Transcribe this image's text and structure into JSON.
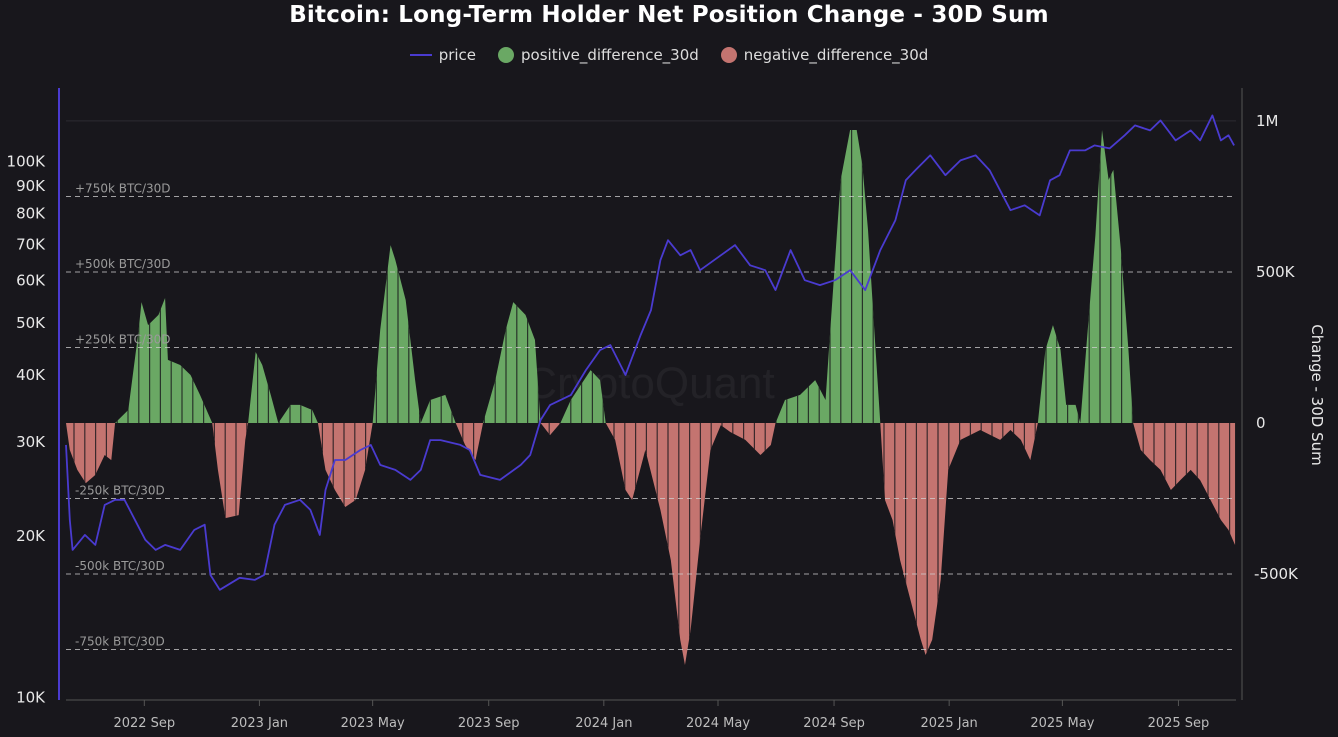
{
  "chart_data": {
    "type": "bar+line",
    "title": "Bitcoin: Long-Term Holder Net Position Change - 30D Sum",
    "legend": {
      "placement": "top-center",
      "entries": [
        "price",
        "positive_difference_30d",
        "negative_difference_30d"
      ]
    },
    "colors": {
      "price": "#4a3bd0",
      "positive": "#6aa864",
      "negative": "#c47470",
      "background": "#18171c"
    },
    "watermark": "CryptoQuant",
    "x_axis": {
      "type": "date",
      "range": [
        "2022-06-10",
        "2025-11-01"
      ],
      "ticks": [
        {
          "date": "2022-09-01",
          "label": "2022 Sep"
        },
        {
          "date": "2023-01-01",
          "label": "2023 Jan"
        },
        {
          "date": "2023-05-01",
          "label": "2023 May"
        },
        {
          "date": "2023-09-01",
          "label": "2023 Sep"
        },
        {
          "date": "2024-01-01",
          "label": "2024 Jan"
        },
        {
          "date": "2024-05-01",
          "label": "2024 May"
        },
        {
          "date": "2024-09-01",
          "label": "2024 Sep"
        },
        {
          "date": "2025-01-01",
          "label": "2025 Jan"
        },
        {
          "date": "2025-05-01",
          "label": "2025 May"
        },
        {
          "date": "2025-09-01",
          "label": "2025 Sep"
        }
      ]
    },
    "y_left": {
      "scale": "log",
      "range": [
        9900,
        137000
      ],
      "ticks": [
        {
          "value": 10000,
          "label": "10K"
        },
        {
          "value": 20000,
          "label": "20K"
        },
        {
          "value": 30000,
          "label": "30K"
        },
        {
          "value": 40000,
          "label": "40K"
        },
        {
          "value": 50000,
          "label": "50K"
        },
        {
          "value": 60000,
          "label": "60K"
        },
        {
          "value": 70000,
          "label": "70K"
        },
        {
          "value": 80000,
          "label": "80K"
        },
        {
          "value": 90000,
          "label": "90K"
        },
        {
          "value": 100000,
          "label": "100K"
        }
      ]
    },
    "y_right": {
      "scale": "linear",
      "label": "Change - 30D Sum",
      "range": [
        -917000,
        1109000
      ],
      "ticks": [
        {
          "value": 1000000,
          "label": "1M"
        },
        {
          "value": 500000,
          "label": "500K"
        },
        {
          "value": 0,
          "label": "0"
        },
        {
          "value": -500000,
          "label": "-500K"
        }
      ]
    },
    "reference_lines": [
      {
        "value": 750000,
        "label": "+750k BTC/30D"
      },
      {
        "value": 500000,
        "label": "+500k BTC/30D"
      },
      {
        "value": 250000,
        "label": "+250k BTC/30D"
      },
      {
        "value": -250000,
        "label": "-250k BTC/30D"
      },
      {
        "value": -500000,
        "label": "-500k BTC/30D"
      },
      {
        "value": -750000,
        "label": "-750k BTC/30D"
      }
    ],
    "series": [
      {
        "name": "price",
        "axis": "left",
        "type": "line",
        "points": [
          [
            "2022-06-10",
            29600
          ],
          [
            "2022-06-14",
            21460
          ],
          [
            "2022-06-17",
            18860
          ],
          [
            "2022-06-30",
            20110
          ],
          [
            "2022-07-11",
            19270
          ],
          [
            "2022-07-21",
            22880
          ],
          [
            "2022-08-01",
            23380
          ],
          [
            "2022-08-11",
            23380
          ],
          [
            "2022-08-22",
            21460
          ],
          [
            "2022-09-02",
            19690
          ],
          [
            "2022-09-13",
            18860
          ],
          [
            "2022-09-23",
            19270
          ],
          [
            "2022-10-09",
            18860
          ],
          [
            "2022-10-24",
            20550
          ],
          [
            "2022-11-04",
            21010
          ],
          [
            "2022-11-10",
            16940
          ],
          [
            "2022-11-20",
            15890
          ],
          [
            "2022-12-11",
            16730
          ],
          [
            "2022-12-27",
            16580
          ],
          [
            "2023-01-06",
            16940
          ],
          [
            "2023-01-17",
            21010
          ],
          [
            "2023-01-28",
            22880
          ],
          [
            "2023-02-13",
            23380
          ],
          [
            "2023-02-24",
            22390
          ],
          [
            "2023-03-06",
            20110
          ],
          [
            "2023-03-12",
            24390
          ],
          [
            "2023-03-22",
            27740
          ],
          [
            "2023-04-02",
            27740
          ],
          [
            "2023-04-18",
            28960
          ],
          [
            "2023-04-29",
            29600
          ],
          [
            "2023-05-09",
            27160
          ],
          [
            "2023-05-25",
            26590
          ],
          [
            "2023-06-10",
            25470
          ],
          [
            "2023-06-21",
            26590
          ],
          [
            "2023-07-01",
            30220
          ],
          [
            "2023-07-12",
            30220
          ],
          [
            "2023-08-02",
            29600
          ],
          [
            "2023-08-12",
            28960
          ],
          [
            "2023-08-23",
            26020
          ],
          [
            "2023-09-13",
            25470
          ],
          [
            "2023-10-05",
            27160
          ],
          [
            "2023-10-15",
            28340
          ],
          [
            "2023-10-26",
            32940
          ],
          [
            "2023-11-05",
            35120
          ],
          [
            "2023-11-27",
            36660
          ],
          [
            "2023-12-13",
            40810
          ],
          [
            "2023-12-28",
            44460
          ],
          [
            "2024-01-08",
            45440
          ],
          [
            "2024-01-24",
            39950
          ],
          [
            "2024-02-09",
            47420
          ],
          [
            "2024-02-20",
            52800
          ],
          [
            "2024-03-01",
            65400
          ],
          [
            "2024-03-09",
            71280
          ],
          [
            "2024-03-22",
            66800
          ],
          [
            "2024-04-02",
            68300
          ],
          [
            "2024-04-12",
            62660
          ],
          [
            "2024-05-04",
            66800
          ],
          [
            "2024-05-19",
            69780
          ],
          [
            "2024-06-04",
            64000
          ],
          [
            "2024-06-20",
            62660
          ],
          [
            "2024-07-01",
            57520
          ],
          [
            "2024-07-17",
            68300
          ],
          [
            "2024-08-01",
            60020
          ],
          [
            "2024-08-17",
            58770
          ],
          [
            "2024-09-02",
            60020
          ],
          [
            "2024-09-18",
            62660
          ],
          [
            "2024-10-04",
            57520
          ],
          [
            "2024-10-20",
            68300
          ],
          [
            "2024-11-05",
            77660
          ],
          [
            "2024-11-16",
            92180
          ],
          [
            "2024-11-26",
            96200
          ],
          [
            "2024-12-12",
            102600
          ],
          [
            "2024-12-28",
            94200
          ],
          [
            "2025-01-13",
            100400
          ],
          [
            "2025-01-29",
            102600
          ],
          [
            "2025-02-13",
            96200
          ],
          [
            "2025-02-24",
            88300
          ],
          [
            "2025-03-07",
            81070
          ],
          [
            "2025-03-22",
            82800
          ],
          [
            "2025-04-07",
            79300
          ],
          [
            "2025-04-18",
            92180
          ],
          [
            "2025-04-28",
            94200
          ],
          [
            "2025-05-09",
            104800
          ],
          [
            "2025-05-25",
            104800
          ],
          [
            "2025-06-04",
            107100
          ],
          [
            "2025-06-20",
            105700
          ],
          [
            "2025-07-06",
            111800
          ],
          [
            "2025-07-17",
            116700
          ],
          [
            "2025-08-02",
            114200
          ],
          [
            "2025-08-13",
            119200
          ],
          [
            "2025-08-29",
            109400
          ],
          [
            "2025-09-14",
            114200
          ],
          [
            "2025-09-24",
            109400
          ],
          [
            "2025-10-07",
            121800
          ],
          [
            "2025-10-16",
            109400
          ],
          [
            "2025-10-24",
            111800
          ],
          [
            "2025-10-30",
            107100
          ]
        ]
      },
      {
        "name": "positive_difference_30d / negative_difference_30d",
        "axis": "right",
        "type": "bar",
        "points": [
          [
            "2022-06-10",
            0
          ],
          [
            "2022-06-14",
            -89000
          ],
          [
            "2022-06-22",
            -155000
          ],
          [
            "2022-07-01",
            -199000
          ],
          [
            "2022-07-11",
            -172000
          ],
          [
            "2022-07-21",
            -106000
          ],
          [
            "2022-07-28",
            -123000
          ],
          [
            "2022-08-01",
            0
          ],
          [
            "2022-08-15",
            43000
          ],
          [
            "2022-08-26",
            308000
          ],
          [
            "2022-08-29",
            400000
          ],
          [
            "2022-09-05",
            324000
          ],
          [
            "2022-09-16",
            358000
          ],
          [
            "2022-09-23",
            414000
          ],
          [
            "2022-09-26",
            209000
          ],
          [
            "2022-10-09",
            192000
          ],
          [
            "2022-10-20",
            159000
          ],
          [
            "2022-10-30",
            93000
          ],
          [
            "2022-11-12",
            0
          ],
          [
            "2022-11-18",
            -155000
          ],
          [
            "2022-11-26",
            -315000
          ],
          [
            "2022-12-10",
            -305000
          ],
          [
            "2022-12-17",
            -56000
          ],
          [
            "2022-12-20",
            0
          ],
          [
            "2022-12-28",
            235000
          ],
          [
            "2023-01-04",
            192000
          ],
          [
            "2023-01-13",
            93000
          ],
          [
            "2023-01-21",
            0
          ],
          [
            "2023-02-03",
            60000
          ],
          [
            "2023-02-13",
            60000
          ],
          [
            "2023-02-26",
            43000
          ],
          [
            "2023-03-04",
            0
          ],
          [
            "2023-03-12",
            -155000
          ],
          [
            "2023-03-22",
            -222000
          ],
          [
            "2023-04-02",
            -278000
          ],
          [
            "2023-04-13",
            -255000
          ],
          [
            "2023-04-23",
            -155000
          ],
          [
            "2023-05-01",
            0
          ],
          [
            "2023-05-09",
            308000
          ],
          [
            "2023-05-20",
            589000
          ],
          [
            "2023-05-25",
            540000
          ],
          [
            "2023-06-05",
            407000
          ],
          [
            "2023-06-15",
            142000
          ],
          [
            "2023-06-21",
            0
          ],
          [
            "2023-07-01",
            76000
          ],
          [
            "2023-07-17",
            93000
          ],
          [
            "2023-07-28",
            0
          ],
          [
            "2023-08-07",
            -73000
          ],
          [
            "2023-08-18",
            -123000
          ],
          [
            "2023-08-26",
            0
          ],
          [
            "2023-09-08",
            142000
          ],
          [
            "2023-09-19",
            308000
          ],
          [
            "2023-09-27",
            400000
          ],
          [
            "2023-10-10",
            358000
          ],
          [
            "2023-10-20",
            275000
          ],
          [
            "2023-10-26",
            0
          ],
          [
            "2023-11-05",
            -40000
          ],
          [
            "2023-11-16",
            0
          ],
          [
            "2023-11-27",
            76000
          ],
          [
            "2023-12-18",
            175000
          ],
          [
            "2023-12-28",
            142000
          ],
          [
            "2024-01-03",
            0
          ],
          [
            "2024-01-13",
            -56000
          ],
          [
            "2024-01-24",
            -222000
          ],
          [
            "2024-01-31",
            -255000
          ],
          [
            "2024-02-14",
            -89000
          ],
          [
            "2024-03-01",
            -288000
          ],
          [
            "2024-03-12",
            -454000
          ],
          [
            "2024-03-22",
            -718000
          ],
          [
            "2024-03-27",
            -801000
          ],
          [
            "2024-04-02",
            -685000
          ],
          [
            "2024-04-12",
            -387000
          ],
          [
            "2024-04-23",
            -89000
          ],
          [
            "2024-05-04",
            -7000
          ],
          [
            "2024-05-14",
            -30000
          ],
          [
            "2024-05-30",
            -56000
          ],
          [
            "2024-06-15",
            -106000
          ],
          [
            "2024-06-26",
            -73000
          ],
          [
            "2024-07-01",
            0
          ],
          [
            "2024-07-11",
            76000
          ],
          [
            "2024-07-27",
            93000
          ],
          [
            "2024-08-12",
            142000
          ],
          [
            "2024-08-23",
            76000
          ],
          [
            "2024-08-28",
            308000
          ],
          [
            "2024-09-08",
            805000
          ],
          [
            "2024-09-18",
            970000
          ],
          [
            "2024-09-25",
            970000
          ],
          [
            "2024-10-01",
            854000
          ],
          [
            "2024-10-07",
            639000
          ],
          [
            "2024-10-15",
            242000
          ],
          [
            "2024-10-20",
            0
          ],
          [
            "2024-10-25",
            -255000
          ],
          [
            "2024-11-02",
            -321000
          ],
          [
            "2024-11-10",
            -454000
          ],
          [
            "2024-11-21",
            -586000
          ],
          [
            "2024-12-02",
            -718000
          ],
          [
            "2024-12-07",
            -768000
          ],
          [
            "2024-12-14",
            -718000
          ],
          [
            "2024-12-23",
            -520000
          ],
          [
            "2024-12-31",
            -155000
          ],
          [
            "2025-01-13",
            -56000
          ],
          [
            "2025-02-03",
            -23000
          ],
          [
            "2025-02-24",
            -56000
          ],
          [
            "2025-03-07",
            -23000
          ],
          [
            "2025-03-18",
            -56000
          ],
          [
            "2025-03-28",
            -123000
          ],
          [
            "2025-04-05",
            0
          ],
          [
            "2025-04-13",
            242000
          ],
          [
            "2025-04-21",
            324000
          ],
          [
            "2025-04-29",
            242000
          ],
          [
            "2025-05-05",
            60000
          ],
          [
            "2025-05-15",
            60000
          ],
          [
            "2025-05-20",
            0
          ],
          [
            "2025-05-27",
            275000
          ],
          [
            "2025-06-05",
            622000
          ],
          [
            "2025-06-12",
            970000
          ],
          [
            "2025-06-19",
            805000
          ],
          [
            "2025-06-24",
            838000
          ],
          [
            "2025-07-02",
            573000
          ],
          [
            "2025-07-10",
            242000
          ],
          [
            "2025-07-15",
            0
          ],
          [
            "2025-07-23",
            -89000
          ],
          [
            "2025-08-02",
            -123000
          ],
          [
            "2025-08-13",
            -155000
          ],
          [
            "2025-08-24",
            -222000
          ],
          [
            "2025-09-03",
            -189000
          ],
          [
            "2025-09-14",
            -155000
          ],
          [
            "2025-09-24",
            -189000
          ],
          [
            "2025-10-05",
            -255000
          ],
          [
            "2025-10-16",
            -321000
          ],
          [
            "2025-10-24",
            -354000
          ],
          [
            "2025-10-31",
            -404000
          ]
        ]
      }
    ]
  }
}
